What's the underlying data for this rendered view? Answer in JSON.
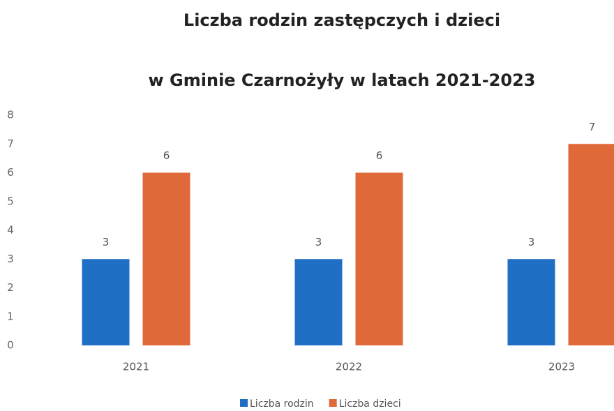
{
  "chart_data": {
    "type": "bar",
    "title": "Liczba rodzin zastępczych i dzieci",
    "subtitle": "w Gminie Czarnożyły w latach 2021-2023",
    "categories": [
      "2021",
      "2022",
      "2023"
    ],
    "series": [
      {
        "name": "Liczba rodzin",
        "color": "#1f6fc5",
        "values": [
          3,
          3,
          3
        ]
      },
      {
        "name": "Liczba dzieci",
        "color": "#e0693a",
        "values": [
          6,
          6,
          7
        ]
      }
    ],
    "ylim": [
      0,
      8
    ],
    "yticks": [
      0,
      1,
      2,
      3,
      4,
      5,
      6,
      7,
      8
    ],
    "grid": false,
    "legend": "bottom"
  }
}
